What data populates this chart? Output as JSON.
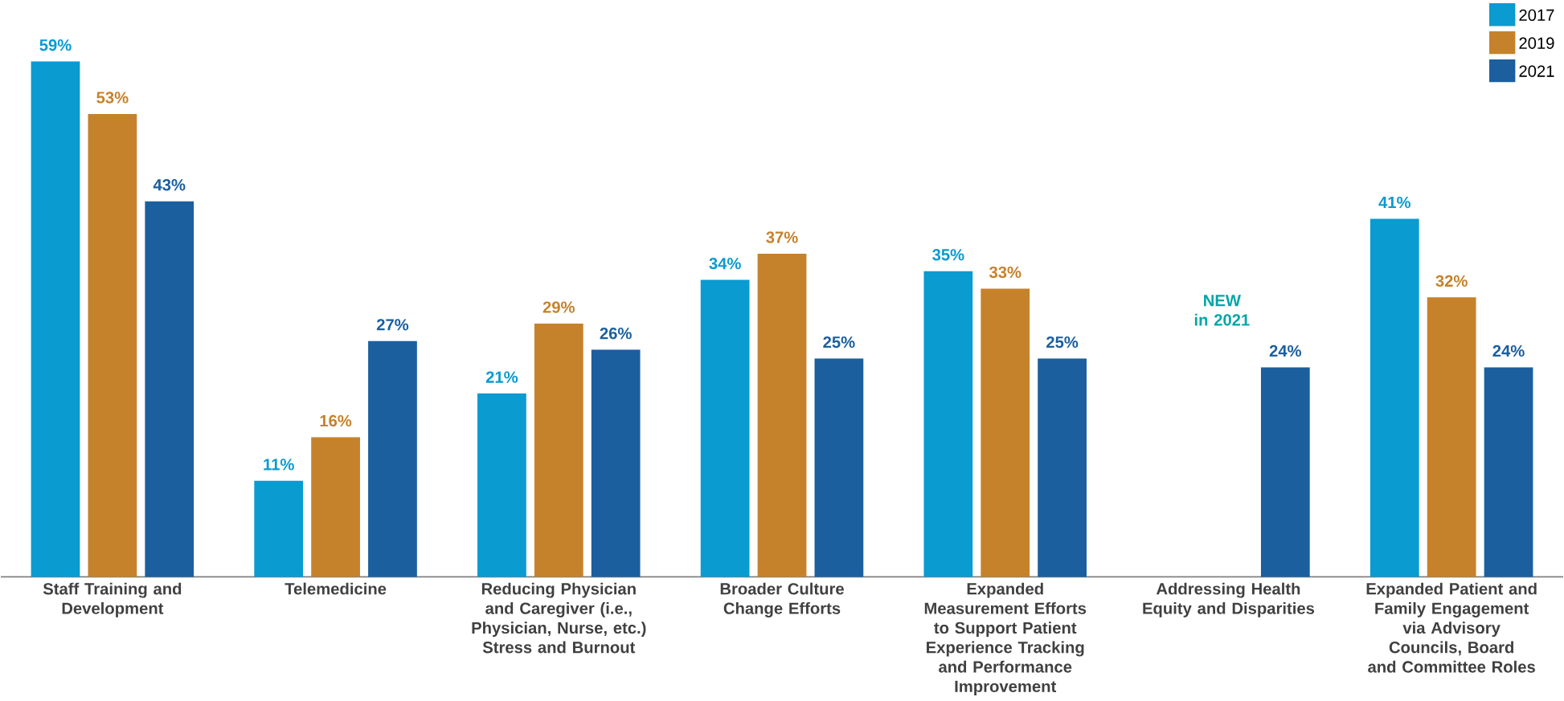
{
  "chart_data": {
    "type": "bar",
    "categories": [
      "Staff Training and Development",
      "Telemedicine",
      "Reducing Physician and Caregiver (i.e., Physician, Nurse, etc.) Stress and Burnout",
      "Broader Culture Change Efforts",
      "Expanded Measurement Efforts to Support Patient Experience Tracking and Performance Improvement",
      "Addressing Health Equity and Disparities",
      "Expanded Patient and Family Engagement via Advisory Councils, Board and Committee Roles"
    ],
    "series": [
      {
        "name": "2017",
        "color": "#0a9bd0",
        "values": [
          59,
          11,
          21,
          34,
          35,
          null,
          41
        ],
        "value_labels": [
          "59%",
          "11%",
          "21%",
          "34%",
          "35%",
          null,
          "41%"
        ]
      },
      {
        "name": "2019",
        "color": "#c6822b",
        "values": [
          53,
          16,
          29,
          37,
          33,
          null,
          32
        ],
        "value_labels": [
          "53%",
          "16%",
          "29%",
          "37%",
          "33%",
          null,
          "32%"
        ]
      },
      {
        "name": "2021",
        "color": "#1b5f9f",
        "values": [
          43,
          27,
          26,
          25,
          25,
          24,
          24
        ],
        "value_labels": [
          "43%",
          "27%",
          "26%",
          "25%",
          "25%",
          "24%",
          "24%"
        ]
      }
    ],
    "annotations": [
      "NEW in 2021"
    ],
    "legend": "top right"
  }
}
